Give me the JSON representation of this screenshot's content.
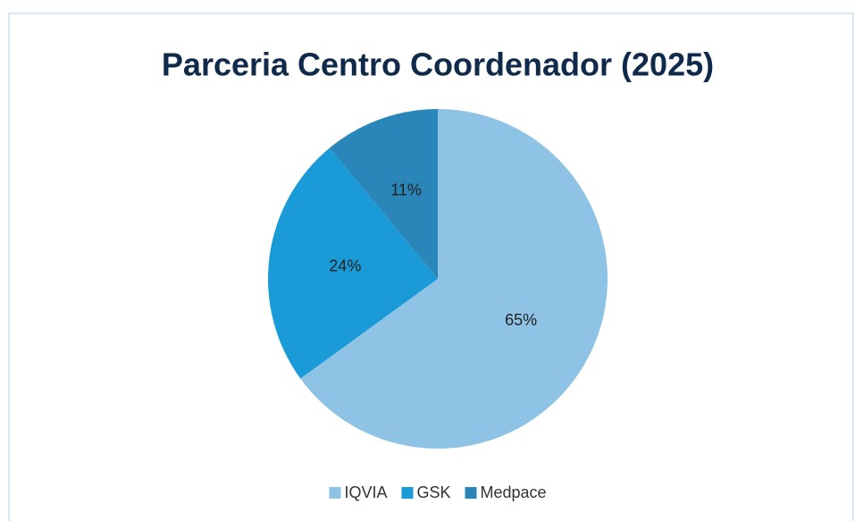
{
  "chart_data": {
    "type": "pie",
    "title": "Parceria Centro Coordenador (2025)",
    "categories": [
      "IQVIA",
      "GSK",
      "Medpace"
    ],
    "values": [
      65,
      24,
      11
    ],
    "value_labels": [
      "65%",
      "24%",
      "11%"
    ],
    "colors": [
      "#8fc3e6",
      "#1a9ad6",
      "#2a86b8"
    ],
    "legend": "bottom"
  }
}
